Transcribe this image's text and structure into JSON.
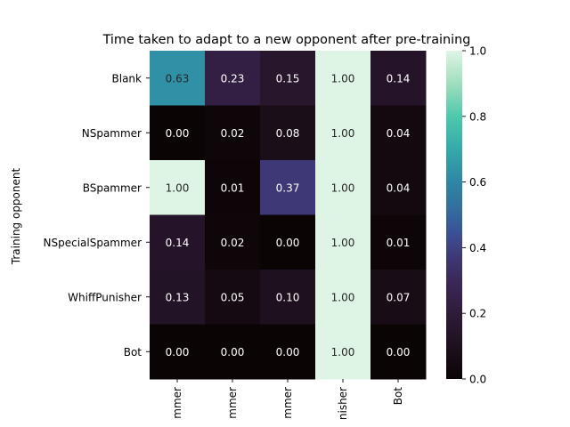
{
  "chart_data": {
    "type": "heatmap",
    "title": "Time taken to adapt to a new opponent after pre-training",
    "ylabel": "Training opponent",
    "xlabel": "",
    "rows": [
      "Blank",
      "NSpammer",
      "BSpammer",
      "NSpecialSpammer",
      "WhiffPunisher",
      "Bot"
    ],
    "columns": [
      "mmer",
      "mmer",
      "mmer",
      "nisher",
      "Bot"
    ],
    "values": [
      [
        0.63,
        0.23,
        0.15,
        1.0,
        0.14
      ],
      [
        0.0,
        0.02,
        0.08,
        1.0,
        0.04
      ],
      [
        1.0,
        0.01,
        0.37,
        1.0,
        0.04
      ],
      [
        0.14,
        0.02,
        0.0,
        1.0,
        0.01
      ],
      [
        0.13,
        0.05,
        0.1,
        1.0,
        0.07
      ],
      [
        0.0,
        0.0,
        0.0,
        1.0,
        0.0
      ]
    ],
    "colorbar": {
      "range": [
        0.0,
        1.0
      ],
      "ticks": [
        "0.0",
        "0.2",
        "0.4",
        "0.6",
        "0.8",
        "1.0"
      ],
      "colormap": "mako"
    }
  }
}
